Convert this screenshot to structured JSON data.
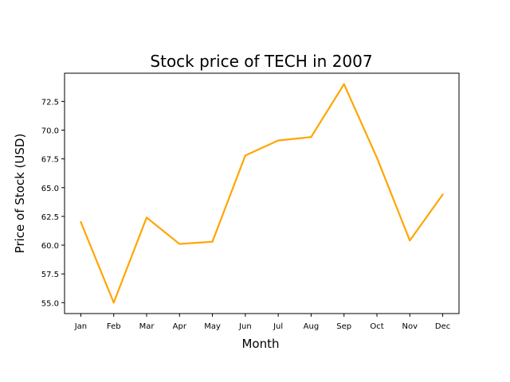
{
  "chart_data": {
    "type": "line",
    "title": "Stock price of TECH in 2007",
    "xlabel": "Month",
    "ylabel": "Price of Stock (USD)",
    "categories": [
      "Jan",
      "Feb",
      "Mar",
      "Apr",
      "May",
      "Jun",
      "Jul",
      "Aug",
      "Sep",
      "Oct",
      "Nov",
      "Dec"
    ],
    "series": [
      {
        "values": [
          62.0,
          55.0,
          62.4,
          60.1,
          60.3,
          67.8,
          69.1,
          69.4,
          74.0,
          67.6,
          60.4,
          64.4
        ],
        "color": "#ffa500"
      }
    ],
    "ylim": [
      54.05,
      74.95
    ],
    "yticks": [
      "55.0",
      "57.5",
      "60.0",
      "62.5",
      "65.0",
      "67.5",
      "70.0",
      "72.5"
    ],
    "grid": false,
    "legend": false
  }
}
